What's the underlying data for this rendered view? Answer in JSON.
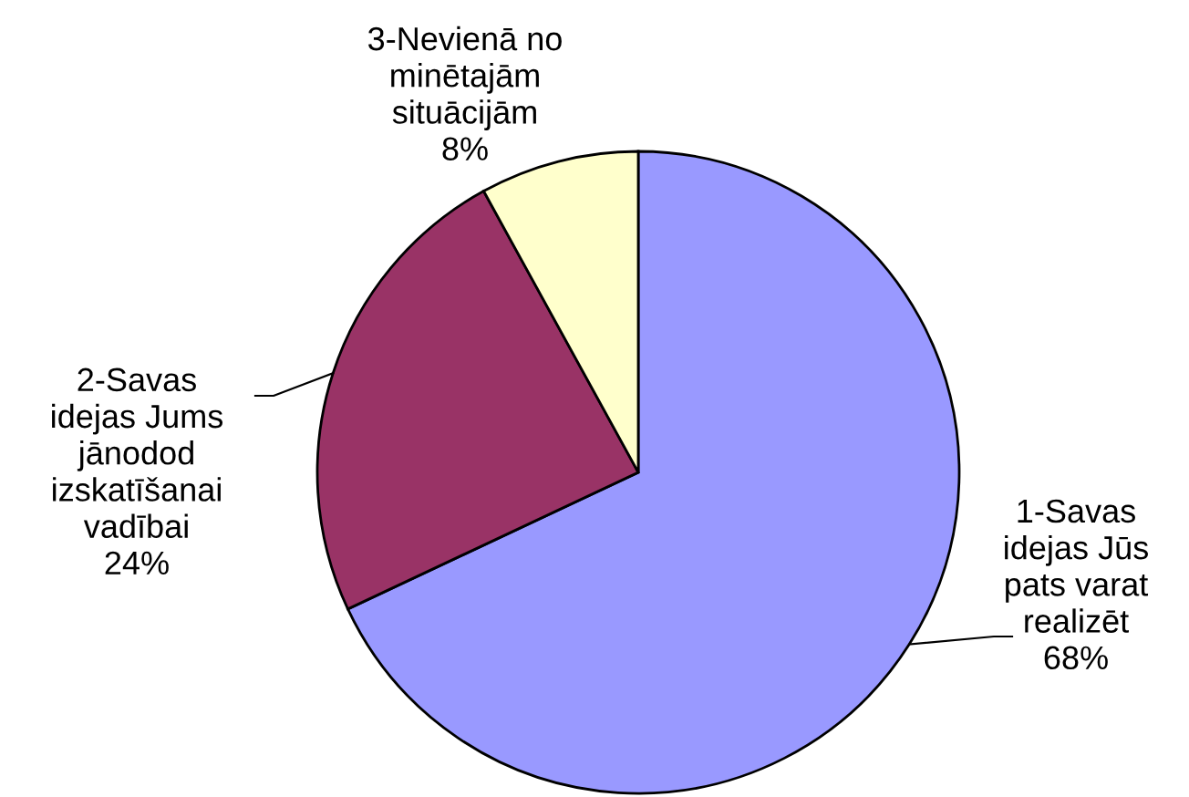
{
  "chart_data": {
    "type": "pie",
    "categories": [
      "1-Savas\nidejas Jūs\npats varat\nrealizēt",
      "2-Savas\nidejas Jums\njānodod\nizskatīšanai\nvadībai",
      "3-Nevienā no\nminētajām\nsituācijām"
    ],
    "values": [
      68,
      24,
      8
    ],
    "value_labels": [
      "68%",
      "24%",
      "8%"
    ],
    "colors": [
      "#9999ff",
      "#993366",
      "#ffffcc"
    ]
  }
}
